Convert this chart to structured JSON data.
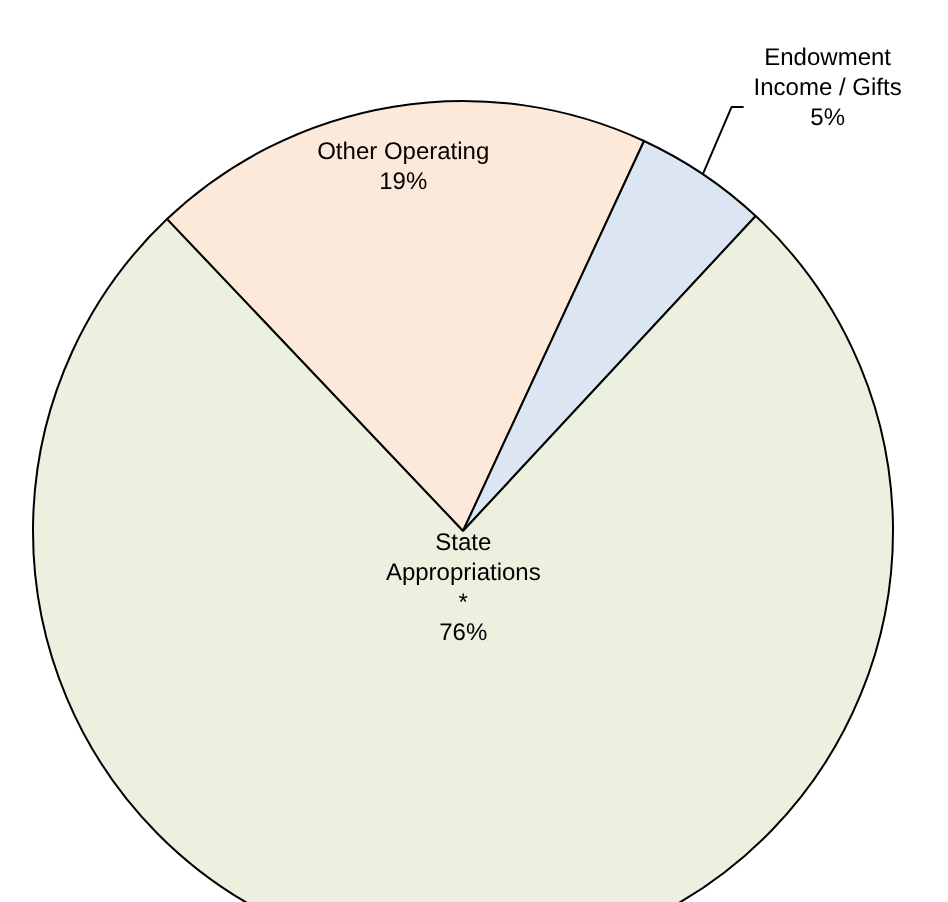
{
  "chart_data": {
    "type": "pie",
    "categories": [
      "Other Operating",
      "Endowment Income / Gifts",
      "State Appropriations *"
    ],
    "values": [
      19,
      5,
      76
    ],
    "colors": [
      "#fde9d9",
      "#dce6f2",
      "#ebf1de"
    ],
    "value_labels": [
      "19%",
      "5%",
      "76%"
    ]
  }
}
